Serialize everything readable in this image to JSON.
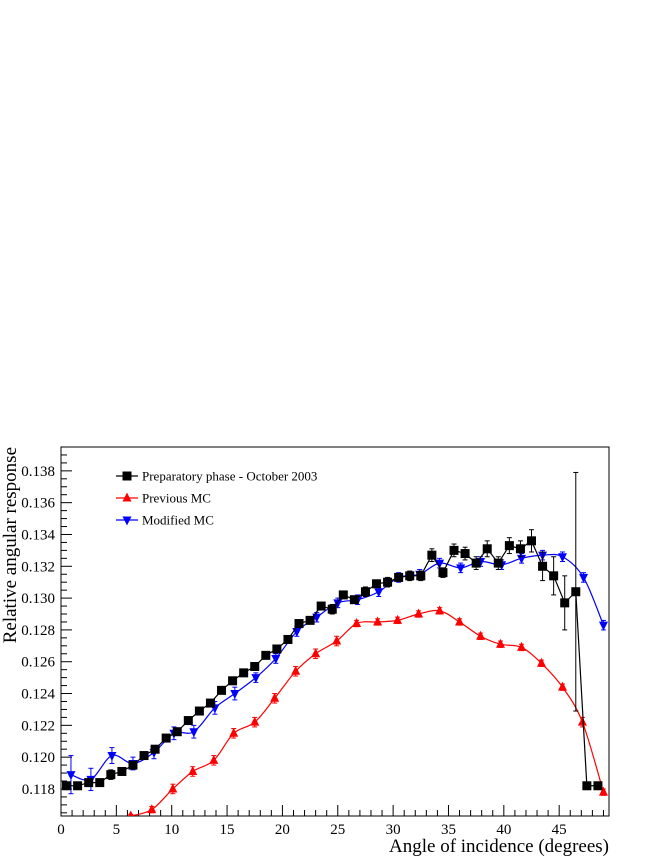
{
  "chart_data": {
    "type": "line",
    "xlabel": "Angle of incidence (degrees)",
    "ylabel": "Relative angular response",
    "xlim": [
      0,
      49.5
    ],
    "ylim": [
      0.1163,
      0.1395
    ],
    "x_ticks": [
      0,
      5,
      10,
      15,
      20,
      25,
      30,
      35,
      40,
      45
    ],
    "y_ticks": [
      0.118,
      0.12,
      0.122,
      0.124,
      0.126,
      0.128,
      0.13,
      0.132,
      0.134,
      0.136,
      0.138
    ],
    "legend_position": "top-left",
    "grid": false,
    "series": [
      {
        "name": "Preparatory phase - October 2003",
        "color": "#000000",
        "marker": "square",
        "connect": "straight",
        "points": [
          [
            0.5,
            0.1182,
            0.0002
          ],
          [
            1.5,
            0.1182,
            0.0002
          ],
          [
            2.5,
            0.1184,
            0.0002
          ],
          [
            3.5,
            0.1184,
            0.0002
          ],
          [
            4.5,
            0.1189,
            0.0003
          ],
          [
            5.5,
            0.1191,
            0.0002
          ],
          [
            6.5,
            0.1195,
            0.0002
          ],
          [
            7.5,
            0.1201,
            0.0002
          ],
          [
            8.5,
            0.1205,
            0.0002
          ],
          [
            9.5,
            0.1212,
            0.0002
          ],
          [
            10.5,
            0.1216,
            0.0002
          ],
          [
            11.5,
            0.1223,
            0.0002
          ],
          [
            12.5,
            0.1229,
            0.0002
          ],
          [
            13.5,
            0.1234,
            0.0002
          ],
          [
            14.5,
            0.1242,
            0.0002
          ],
          [
            15.5,
            0.1248,
            0.0002
          ],
          [
            16.5,
            0.1253,
            0.0002
          ],
          [
            17.5,
            0.1257,
            0.0002
          ],
          [
            18.5,
            0.1264,
            0.0002
          ],
          [
            19.5,
            0.1268,
            0.0002
          ],
          [
            20.5,
            0.1274,
            0.0002
          ],
          [
            21.5,
            0.1284,
            0.0002
          ],
          [
            22.5,
            0.1286,
            0.0002
          ],
          [
            23.5,
            0.1295,
            0.0002
          ],
          [
            24.5,
            0.1293,
            0.0003
          ],
          [
            25.5,
            0.1302,
            0.0002
          ],
          [
            26.5,
            0.1299,
            0.0002
          ],
          [
            27.5,
            0.1304,
            0.0003
          ],
          [
            28.5,
            0.1309,
            0.0002
          ],
          [
            29.5,
            0.131,
            0.0003
          ],
          [
            30.5,
            0.1313,
            0.0002
          ],
          [
            31.5,
            0.1314,
            0.0003
          ],
          [
            32.5,
            0.1314,
            0.0003
          ],
          [
            33.5,
            0.1327,
            0.0004
          ],
          [
            34.5,
            0.1316,
            0.0003
          ],
          [
            35.5,
            0.133,
            0.0004
          ],
          [
            36.5,
            0.1328,
            0.0004
          ],
          [
            37.5,
            0.1322,
            0.0004
          ],
          [
            38.5,
            0.1331,
            0.0005
          ],
          [
            39.5,
            0.1322,
            0.0004
          ],
          [
            40.5,
            0.1333,
            0.0005
          ],
          [
            41.5,
            0.1331,
            0.0005
          ],
          [
            42.5,
            0.1336,
            0.0007
          ],
          [
            43.5,
            0.132,
            0.0009
          ],
          [
            44.5,
            0.1314,
            0.0012
          ],
          [
            45.5,
            0.1297,
            0.0017
          ],
          [
            46.5,
            0.1304,
            0.0075
          ],
          [
            47.5,
            0.1182,
            0
          ],
          [
            48.5,
            0.1182,
            0
          ]
        ]
      },
      {
        "name": "Previous MC",
        "color": "#ff0000",
        "marker": "triangle-up",
        "connect": "smooth",
        "points": [
          [
            6.3,
            0.1163,
            0.0001
          ],
          [
            8.2,
            0.1167,
            0.0002
          ],
          [
            10.1,
            0.118,
            0.0003
          ],
          [
            11.9,
            0.1191,
            0.0003
          ],
          [
            13.8,
            0.1198,
            0.0003
          ],
          [
            15.6,
            0.1215,
            0.0003
          ],
          [
            17.5,
            0.1222,
            0.0003
          ],
          [
            19.3,
            0.1237,
            0.0003
          ],
          [
            21.2,
            0.1254,
            0.0003
          ],
          [
            23.0,
            0.1265,
            0.0003
          ],
          [
            24.9,
            0.1273,
            0.0003
          ],
          [
            26.7,
            0.1284,
            0.0002
          ],
          [
            28.6,
            0.1285,
            0.0002
          ],
          [
            30.4,
            0.1286,
            0.0002
          ],
          [
            32.3,
            0.129,
            0.0002
          ],
          [
            34.2,
            0.1292,
            0.0002
          ],
          [
            36.0,
            0.1285,
            0.0002
          ],
          [
            37.9,
            0.1276,
            0.0002
          ],
          [
            39.7,
            0.1271,
            0.0002
          ],
          [
            41.6,
            0.1269,
            0.0002
          ],
          [
            43.4,
            0.1259,
            0.0002
          ],
          [
            45.3,
            0.1244,
            0.0002
          ],
          [
            47.1,
            0.1222,
            0.0003
          ],
          [
            49.0,
            0.1178,
            0.0002
          ]
        ]
      },
      {
        "name": "Modified MC",
        "color": "#0000ff",
        "marker": "triangle-down",
        "connect": "smooth",
        "points": [
          [
            0.9,
            0.1189,
            0.0012
          ],
          [
            2.7,
            0.1186,
            0.0007
          ],
          [
            4.6,
            0.1201,
            0.0005
          ],
          [
            6.5,
            0.1196,
            0.0004
          ],
          [
            8.4,
            0.1203,
            0.0004
          ],
          [
            10.2,
            0.1215,
            0.0004
          ],
          [
            12.0,
            0.1216,
            0.0004
          ],
          [
            13.9,
            0.1231,
            0.0004
          ],
          [
            15.7,
            0.124,
            0.0004
          ],
          [
            17.6,
            0.125,
            0.0003
          ],
          [
            19.4,
            0.1262,
            0.0003
          ],
          [
            21.3,
            0.1279,
            0.0003
          ],
          [
            23.1,
            0.1288,
            0.0003
          ],
          [
            25.0,
            0.1297,
            0.0003
          ],
          [
            26.8,
            0.1299,
            0.0003
          ],
          [
            28.7,
            0.1304,
            0.0003
          ],
          [
            30.5,
            0.1313,
            0.0003
          ],
          [
            32.4,
            0.1315,
            0.0003
          ],
          [
            34.2,
            0.1322,
            0.0003
          ],
          [
            36.1,
            0.1319,
            0.0003
          ],
          [
            37.9,
            0.1323,
            0.0003
          ],
          [
            39.8,
            0.1321,
            0.0003
          ],
          [
            41.6,
            0.1325,
            0.0003
          ],
          [
            43.5,
            0.1327,
            0.0003
          ],
          [
            45.3,
            0.1326,
            0.0003
          ],
          [
            47.2,
            0.1313,
            0.0003
          ],
          [
            49.0,
            0.1283,
            0.0003
          ]
        ]
      }
    ]
  }
}
